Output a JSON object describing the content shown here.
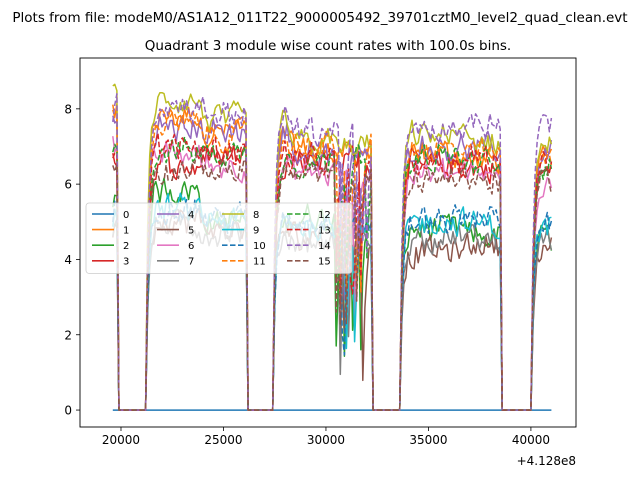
{
  "figure": {
    "suptitle": "Plots from file: modeM0/AS1A12_011T22_9000005492_39701cztM0_level2_quad_clean.evt",
    "offset_text": "+4.128e8"
  },
  "chart_data": {
    "type": "line",
    "title": "Quadrant 3 module wise count rates with 100.0s bins.",
    "xlabel": "",
    "ylabel": "",
    "x_offset": 412800000,
    "xlim": [
      18000,
      42200
    ],
    "ylim": [
      -0.45,
      9.35
    ],
    "xticks": [
      20000,
      25000,
      30000,
      35000,
      40000
    ],
    "yticks": [
      0,
      2,
      4,
      6,
      8
    ],
    "grid": false,
    "legend": {
      "location": "center-left",
      "ncol": 4
    },
    "gaps": [
      [
        19900,
        21200
      ],
      [
        26200,
        27400
      ],
      [
        32300,
        33600
      ],
      [
        38600,
        40000
      ]
    ],
    "time_range": [
      19600,
      41000
    ],
    "series": [
      {
        "name": "0",
        "color": "#1f77b4",
        "dash": "solid",
        "mean": [
          0,
          0,
          0,
          0,
          0
        ]
      },
      {
        "name": "1",
        "color": "#ff7f0e",
        "dash": "solid",
        "mean": [
          7.8,
          7.4,
          6.9,
          6.8,
          6.6
        ]
      },
      {
        "name": "2",
        "color": "#2ca02c",
        "dash": "solid",
        "mean": [
          5.9,
          5.0,
          5.1,
          4.8,
          4.6
        ]
      },
      {
        "name": "3",
        "color": "#d62728",
        "dash": "solid",
        "mean": [
          6.5,
          6.8,
          6.7,
          6.5,
          6.4
        ]
      },
      {
        "name": "4",
        "color": "#9467bd",
        "dash": "solid",
        "mean": [
          7.5,
          7.4,
          6.8,
          7.0,
          6.9
        ]
      },
      {
        "name": "5",
        "color": "#8c564b",
        "dash": "solid",
        "mean": [
          5.0,
          4.8,
          4.6,
          4.2,
          4.4
        ]
      },
      {
        "name": "6",
        "color": "#e377c2",
        "dash": "solid",
        "mean": [
          6.8,
          6.5,
          6.3,
          6.3,
          6.2
        ]
      },
      {
        "name": "7",
        "color": "#7f7f7f",
        "dash": "solid",
        "mean": [
          4.9,
          4.7,
          4.5,
          4.6,
          4.5
        ]
      },
      {
        "name": "8",
        "color": "#bcbd22",
        "dash": "solid",
        "mean": [
          8.2,
          7.7,
          7.1,
          7.3,
          7.1
        ]
      },
      {
        "name": "9",
        "color": "#17becf",
        "dash": "solid",
        "mean": [
          5.3,
          5.0,
          4.9,
          5.0,
          4.9
        ]
      },
      {
        "name": "10",
        "color": "#1f77b4",
        "dash": "dashed",
        "mean": [
          5.4,
          5.1,
          5.0,
          5.0,
          5.1
        ]
      },
      {
        "name": "11",
        "color": "#ff7f0e",
        "dash": "dashed",
        "mean": [
          7.6,
          7.3,
          7.0,
          6.9,
          6.8
        ]
      },
      {
        "name": "12",
        "color": "#2ca02c",
        "dash": "dashed",
        "mean": [
          6.9,
          6.8,
          6.6,
          6.7,
          6.5
        ]
      },
      {
        "name": "13",
        "color": "#d62728",
        "dash": "dashed",
        "mean": [
          7.0,
          6.9,
          6.6,
          6.6,
          6.7
        ]
      },
      {
        "name": "14",
        "color": "#9467bd",
        "dash": "dashed",
        "mean": [
          8.1,
          7.9,
          7.4,
          7.5,
          7.6
        ]
      },
      {
        "name": "15",
        "color": "#8c564b",
        "dash": "dashed",
        "mean": [
          6.4,
          6.4,
          6.2,
          6.2,
          6.1
        ]
      }
    ]
  }
}
